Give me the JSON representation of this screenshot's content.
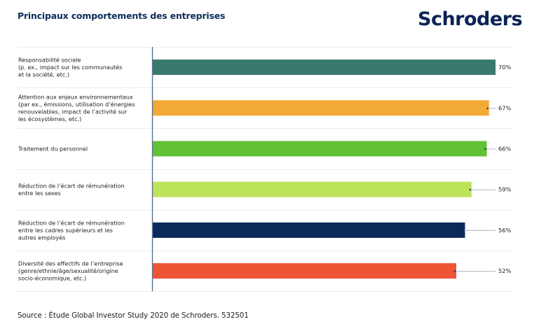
{
  "header": {
    "title": "Principaux comportements des entreprises",
    "logo_text": "Schroders"
  },
  "footer": {
    "source": "Source : Étude Global Investor Study 2020 de Schroders. 532501"
  },
  "chart_data": {
    "type": "bar",
    "orientation": "horizontal",
    "title": "Principaux comportements des entreprises",
    "xlabel": "",
    "ylabel": "",
    "unit": "%",
    "grid": false,
    "legend": "none",
    "categories": [
      [
        "Responsabilité sociale",
        "(p. ex., impact sur les communautés",
        "et la société, etc.)"
      ],
      [
        "Attention aux enjeux environnementaux",
        "(par ex., émissions, utilisation d’énergies",
        "renouvelables, impact de l’activité sur",
        "les écosystèmes, etc.)"
      ],
      [
        "Traitement du personnel"
      ],
      [
        "Réduction de l’écart de rémunération",
        "entre les sexes"
      ],
      [
        "Réduction de l’écart de rémunération",
        "entre les cadres supérieurs et les",
        "autres employés"
      ],
      [
        "Diversité des effectifs de l’entreprise",
        "(genre/ethnie/âge/sexualité/origine",
        "socio-économique, etc.)"
      ]
    ],
    "values": [
      70,
      67,
      66,
      59,
      56,
      52
    ],
    "value_labels": [
      "70%",
      "67%",
      "66%",
      "59%",
      "56%",
      "52%"
    ],
    "colors": [
      "#3a7a6e",
      "#f2a935",
      "#63c136",
      "#bde35a",
      "#0b2a5c",
      "#ee5535"
    ]
  }
}
